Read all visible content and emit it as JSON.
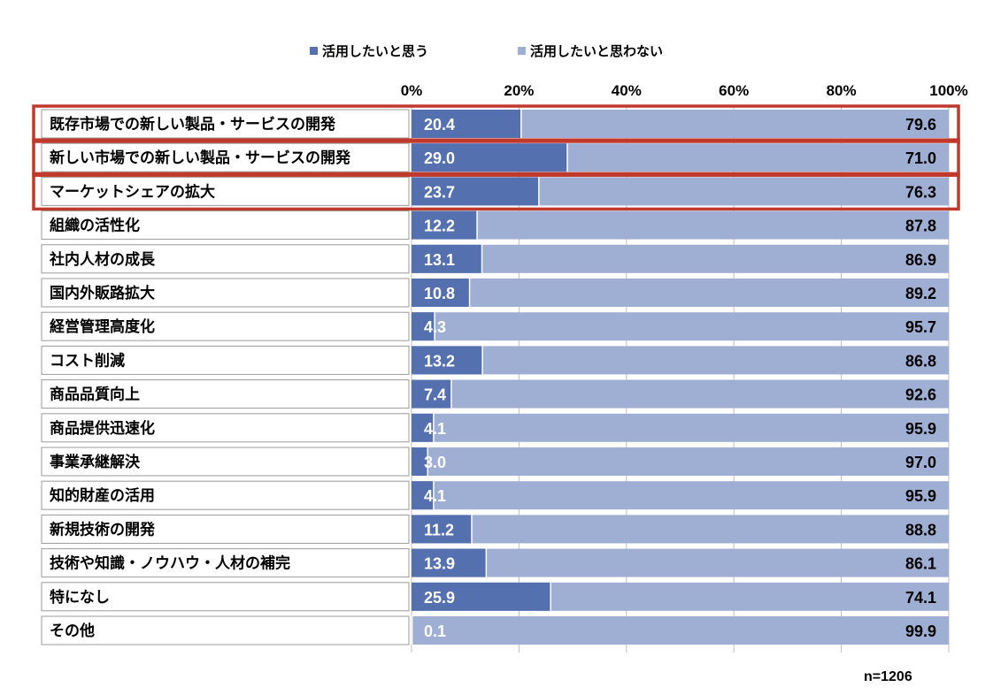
{
  "chart_data": {
    "type": "bar",
    "orientation": "horizontal",
    "stacked": true,
    "percent": true,
    "categories": [
      "既存市場での新しい製品・サービスの開発",
      "新しい市場での新しい製品・サービスの開発",
      "マーケットシェアの拡大",
      "組織の活性化",
      "社内人材の成長",
      "国内外販路拡大",
      "経営管理高度化",
      "コスト削減",
      "商品品質向上",
      "商品提供迅速化",
      "事業承継解決",
      "知的財産の活用",
      "新規技術の開発",
      "技術や知識・ノウハウ・人材の補完",
      "特になし",
      "その他"
    ],
    "series": [
      {
        "name": "活用したいと思う",
        "values": [
          20.4,
          29.0,
          23.7,
          12.2,
          13.1,
          10.8,
          4.3,
          13.2,
          7.4,
          4.1,
          3.0,
          4.1,
          11.2,
          13.9,
          25.9,
          0.1
        ]
      },
      {
        "name": "活用したいと思わない",
        "values": [
          79.6,
          71.0,
          76.3,
          87.8,
          86.9,
          89.2,
          95.7,
          86.8,
          92.6,
          95.9,
          97.0,
          95.9,
          88.8,
          86.1,
          74.1,
          99.9
        ]
      }
    ],
    "xticks": [
      "0%",
      "20%",
      "40%",
      "60%",
      "80%",
      "100%"
    ],
    "xlim": [
      0,
      100
    ],
    "legend_position": "top",
    "grid": true,
    "highlighted_categories": [
      0,
      1,
      2
    ],
    "colors": {
      "series0": "#5470AE",
      "series1": "#9FAFD3",
      "highlight": "#C0392B",
      "grid": "#BFBFBF"
    },
    "note": "n=1206"
  }
}
